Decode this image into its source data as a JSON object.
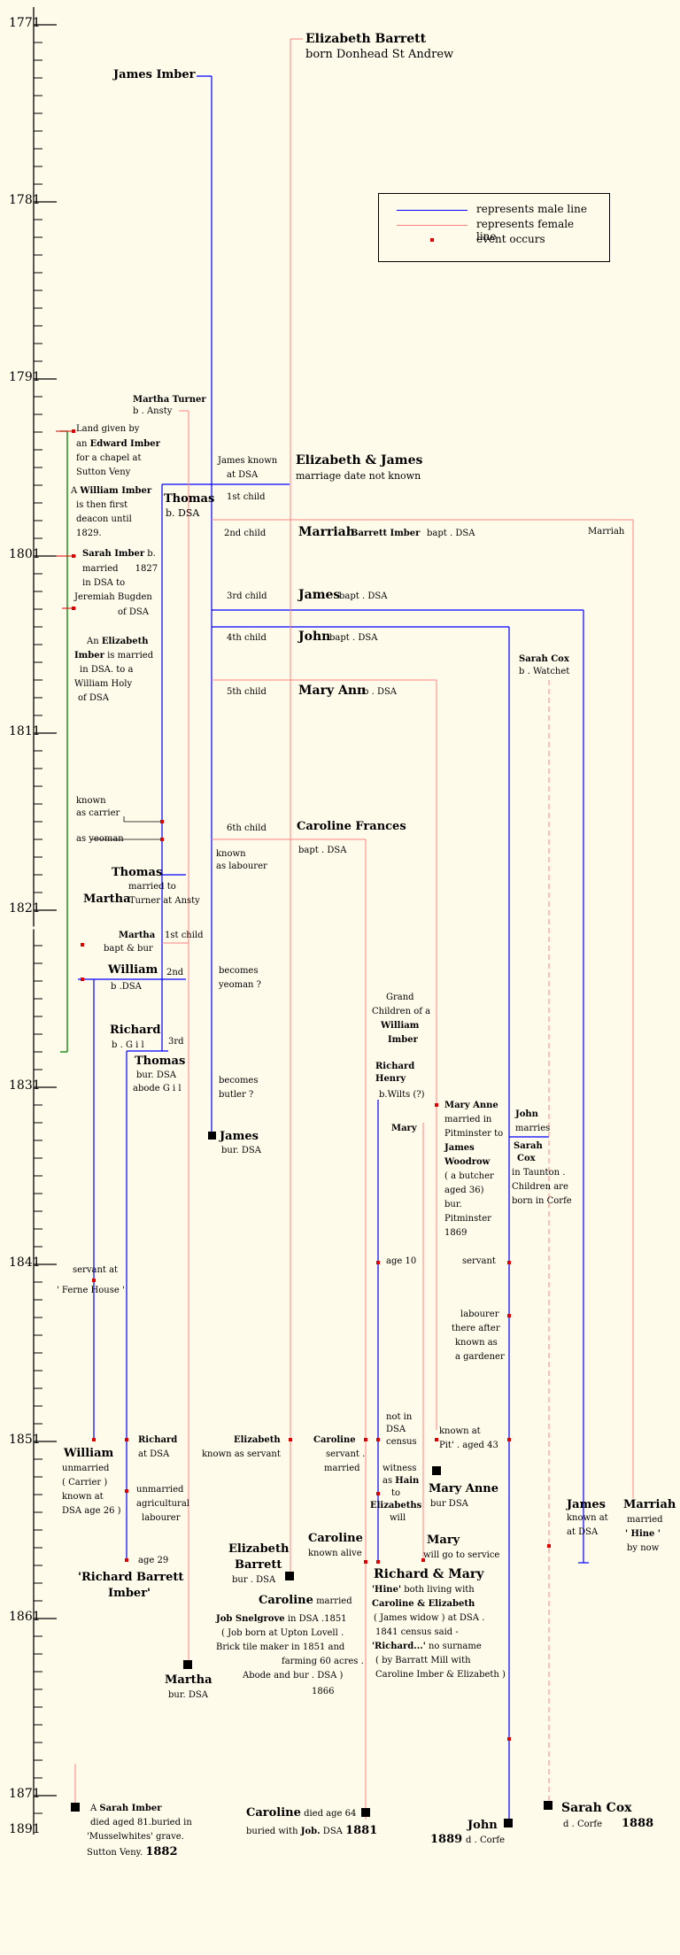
{
  "years": [
    {
      "label": "1771"
    },
    {
      "label": "1781"
    },
    {
      "label": "1791"
    },
    {
      "label": "1801"
    },
    {
      "label": "1811"
    },
    {
      "label": "1821"
    },
    {
      "label": "1831"
    },
    {
      "label": "1841"
    },
    {
      "label": "1851"
    },
    {
      "label": "1861"
    },
    {
      "label": "1871"
    },
    {
      "label": "1891"
    }
  ],
  "legend": {
    "male": "represents male line",
    "female": "represents female line",
    "event": "event occurs",
    "male_color": "#0000ff",
    "female_color": "#ff8080",
    "event_color": "#e00000"
  },
  "people": {
    "elizabeth_barrett": {
      "name": "Elizabeth Barrett",
      "note": "born Donhead St Andrew"
    },
    "james_imber": {
      "name": "James Imber"
    },
    "martha_turner": {
      "name": "Martha Turner",
      "note": "b . Ansty"
    },
    "thomas_top": {
      "name": "Thomas",
      "note": "b. DSA"
    },
    "james_known": {
      "l1": "James known",
      "l2": "at DSA"
    },
    "eliz_james": {
      "name": "Elizabeth & James",
      "note": "marriage date not known"
    },
    "first_child": "1st child",
    "second_child": "2nd child",
    "third_child": "3rd child",
    "fourth_child": "4th child",
    "fifth_child": "5th child",
    "sixth_child": "6th child",
    "marriah": {
      "name": "Marriah",
      "name2": "Barrett Imber",
      "note": "bapt . DSA",
      "right": "Marriah"
    },
    "james_child": {
      "name": "James",
      "note": "bapt . DSA"
    },
    "john_child": {
      "name": "John",
      "note": "bapt . DSA"
    },
    "mary_ann_child": {
      "name": "Mary Ann",
      "note": "b . DSA"
    },
    "caroline_child": {
      "name": "Caroline Frances",
      "note": "bapt . DSA"
    },
    "sarah_cox_top": {
      "name": "Sarah Cox",
      "note": "b . Watchet"
    }
  },
  "left_notes": {
    "land": {
      "l1": "Land given by",
      "l2a": "an",
      "l2b": "Edward Imber",
      "l3": "for a chapel at",
      "l4": "Sutton Veny",
      "l5a": "A",
      "l5b": "William Imber",
      "l6": "is then first",
      "l7": "deacon until",
      "l8": "1829."
    },
    "sarah": {
      "l1a": "Sarah Imber",
      "l1b": "b.",
      "l2a": "married",
      "l2b": "1827",
      "l3": "in DSA to",
      "l4": "Jeremiah Bugden",
      "l5": "of DSA"
    },
    "elizabeth": {
      "l1a": "An",
      "l1b": "Elizabeth",
      "l2a": "Imber",
      "l2b": "is married",
      "l3": "in DSA. to a",
      "l4": "William Holy",
      "l5": "of DSA"
    },
    "carrier": {
      "l1": "known",
      "l2": "as carrier"
    },
    "yeoman": "as yeoman",
    "known_labourer": {
      "l1": "known",
      "l2": "as labourer"
    },
    "thomas_mid": {
      "name": "Thomas",
      "l2": "married to",
      "name2": "Martha",
      "l3": "Turner at Ansty"
    },
    "martha_child": {
      "name": "Martha",
      "l2": "bapt & bur"
    },
    "first_child2": "1st child",
    "william": {
      "name": "William",
      "l2": "b .DSA"
    },
    "second2": "2nd",
    "richard": {
      "name": "Richard",
      "l2": "b . G i l"
    },
    "third2": "3rd",
    "thomas_bur": {
      "name": "Thomas",
      "l2": "bur. DSA",
      "l3": "abode G i l"
    },
    "becomes_yeoman": {
      "l1": "becomes",
      "l2": "yeoman ?"
    },
    "becomes_butler": {
      "l1": "becomes",
      "l2": "butler ?"
    },
    "james_bur": {
      "name": "James",
      "l2": "bur. DSA"
    },
    "servant_ferne": {
      "l1": "servant at",
      "l2": "' Ferne House '"
    }
  },
  "right_notes": {
    "grand": {
      "l1": "Grand",
      "l2": "Children of a",
      "l3": "William",
      "l4": "Imber"
    },
    "richard_henry": {
      "l1": "Richard",
      "l2": "Henry",
      "l3": "b.Wilts (?)"
    },
    "mary": "Mary",
    "mary_ann_married": {
      "l1": "Mary Anne",
      "l2": "married in",
      "l3": "Pitminster to",
      "l4": "James",
      "l5": "Woodrow",
      "l6": "( a butcher",
      "l7": "aged 36)",
      "l8": "bur.",
      "l9": "Pitminster",
      "l10": "1869"
    },
    "john_marries": {
      "l1": "John",
      "l2": "marries",
      "l3": "Sarah",
      "l4": "Cox",
      "l5": "in Taunton .",
      "l6": "Children are",
      "l7": "born in Corfe"
    },
    "age10": "age 10",
    "servant": "servant",
    "labourer": {
      "l1": "labourer",
      "l2": "there after",
      "l3": "known as",
      "l4": "a gardener"
    },
    "not_in_dsa": {
      "l1": "not in",
      "l2": "DSA",
      "l3": "census"
    },
    "known_pit": {
      "l1": "known at",
      "l2": "Pit' . aged 43"
    },
    "witness": {
      "l1": "witness",
      "l2": "as",
      "l2b": "Hain",
      "l3": "to",
      "l4": "Elizabeths",
      "l5": "will"
    }
  },
  "census1851": {
    "william": {
      "name": "William",
      "l2": "unmarried",
      "l3": "( Carrier )",
      "l4": "known at",
      "l5": "DSA age 26 )"
    },
    "richard": {
      "name": "Richard",
      "l2": "at DSA",
      "l3": "unmarried",
      "l4": "agricultural",
      "l5": "labourer"
    },
    "elizabeth": {
      "name": "Elizabeth",
      "l2": "known as servant"
    },
    "caroline": {
      "name": "Caroline",
      "l2": "servant .",
      "l3": "married"
    },
    "mary_anne": {
      "name": "Mary Anne",
      "l2": "bur DSA"
    },
    "james_right": {
      "name": "James",
      "l2": "known at",
      "l3": "at DSA"
    },
    "marriah_right": {
      "name": "Marriah",
      "l2": "married",
      "l3": "' Hine '",
      "l4": "by now"
    }
  },
  "later": {
    "age29": "age 29",
    "richard_barrett": {
      "l1": "'Richard Barrett",
      "l2": "Imber'"
    },
    "eliz_barrett": {
      "l1": "Elizabeth",
      "l2": "Barrett",
      "l3": "bur . DSA"
    },
    "caroline_alive": {
      "name": "Caroline",
      "l2": "known alive"
    },
    "mary_will": {
      "name": "Mary",
      "l2": "will go to service"
    },
    "richard_mary": {
      "name": "Richard & Mary",
      "l2a": "'Hine'",
      "l2b": "both living with",
      "l3": "Caroline & Elizabeth",
      "l4": "( James widow ) at DSA .",
      "l5": "1841 census said -",
      "l6a": "'Richard...'",
      "l6b": "no surname",
      "l7": "( by Barratt Mill with",
      "l8": "Caroline Imber & Elizabeth )"
    },
    "caroline_married": {
      "name": "Caroline",
      "l1b": "married",
      "l2a": "Job Snelgrove",
      "l2b": "in DSA .1851",
      "l3": "( Job born at Upton Lovell .",
      "l4": "Brick tile maker in 1851 and",
      "l5": "farming 60 acres .",
      "l6": "Abode and bur . DSA )",
      "l7": "1866"
    },
    "martha_bur": {
      "name": "Martha",
      "l2": "bur. DSA"
    }
  },
  "bottom": {
    "sarah_imber": {
      "l1a": "A",
      "l1b": "Sarah Imber",
      "l2": "died aged 81.buried in",
      "l3": "'Musselwhites' grave.",
      "l4": "Sutton Veny.",
      "year": "1882"
    },
    "caroline_died": {
      "name": "Caroline",
      "l1b": "died age 64",
      "l2a": "buried with",
      "l2b": "Job.",
      "l2c": "DSA",
      "year": "1881"
    },
    "john": {
      "name": "John",
      "l2": "d . Corfe",
      "year": "1889"
    },
    "sarah_cox": {
      "name": "Sarah Cox",
      "l2": "d . Corfe",
      "year": "1888"
    }
  }
}
